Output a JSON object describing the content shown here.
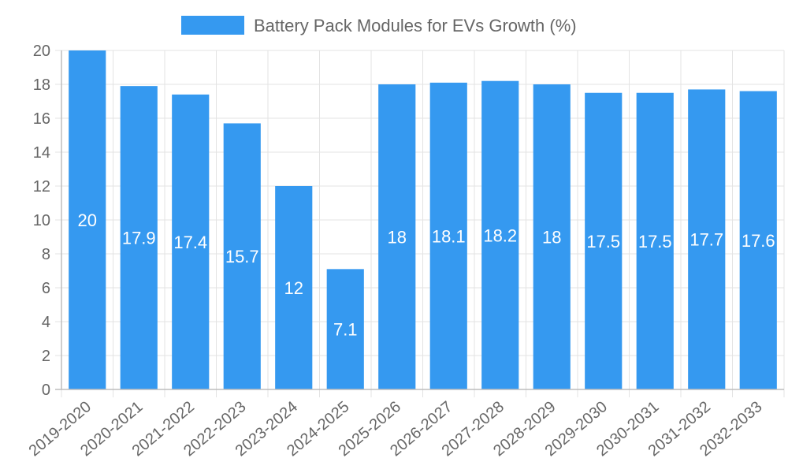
{
  "chart_data": {
    "type": "bar",
    "categories": [
      "2019-2020",
      "2020-2021",
      "2021-2022",
      "2022-2023",
      "2023-2024",
      "2024-2025",
      "2025-2026",
      "2026-2027",
      "2027-2028",
      "2028-2029",
      "2029-2030",
      "2030-2031",
      "2031-2032",
      "2032-2033"
    ],
    "series": [
      {
        "name": "Battery Pack Modules for EVs Growth (%)",
        "values": [
          20,
          17.9,
          17.4,
          15.7,
          12,
          7.1,
          18,
          18.1,
          18.2,
          18,
          17.5,
          17.5,
          17.7,
          17.6
        ],
        "data_labels": [
          "20",
          "17.9",
          "17.4",
          "15.7",
          "12",
          "7.1",
          "18",
          "18.1",
          "18.2",
          "18",
          "17.5",
          "17.5",
          "17.7",
          "17.6"
        ],
        "color": "#3599f0"
      }
    ],
    "ylim": [
      0,
      20
    ],
    "y_ticks": [
      "0",
      "2",
      "4",
      "6",
      "8",
      "10",
      "12",
      "14",
      "16",
      "18",
      "20"
    ],
    "grid": true,
    "legend_position": "top",
    "xlabel": "",
    "ylabel": ""
  }
}
